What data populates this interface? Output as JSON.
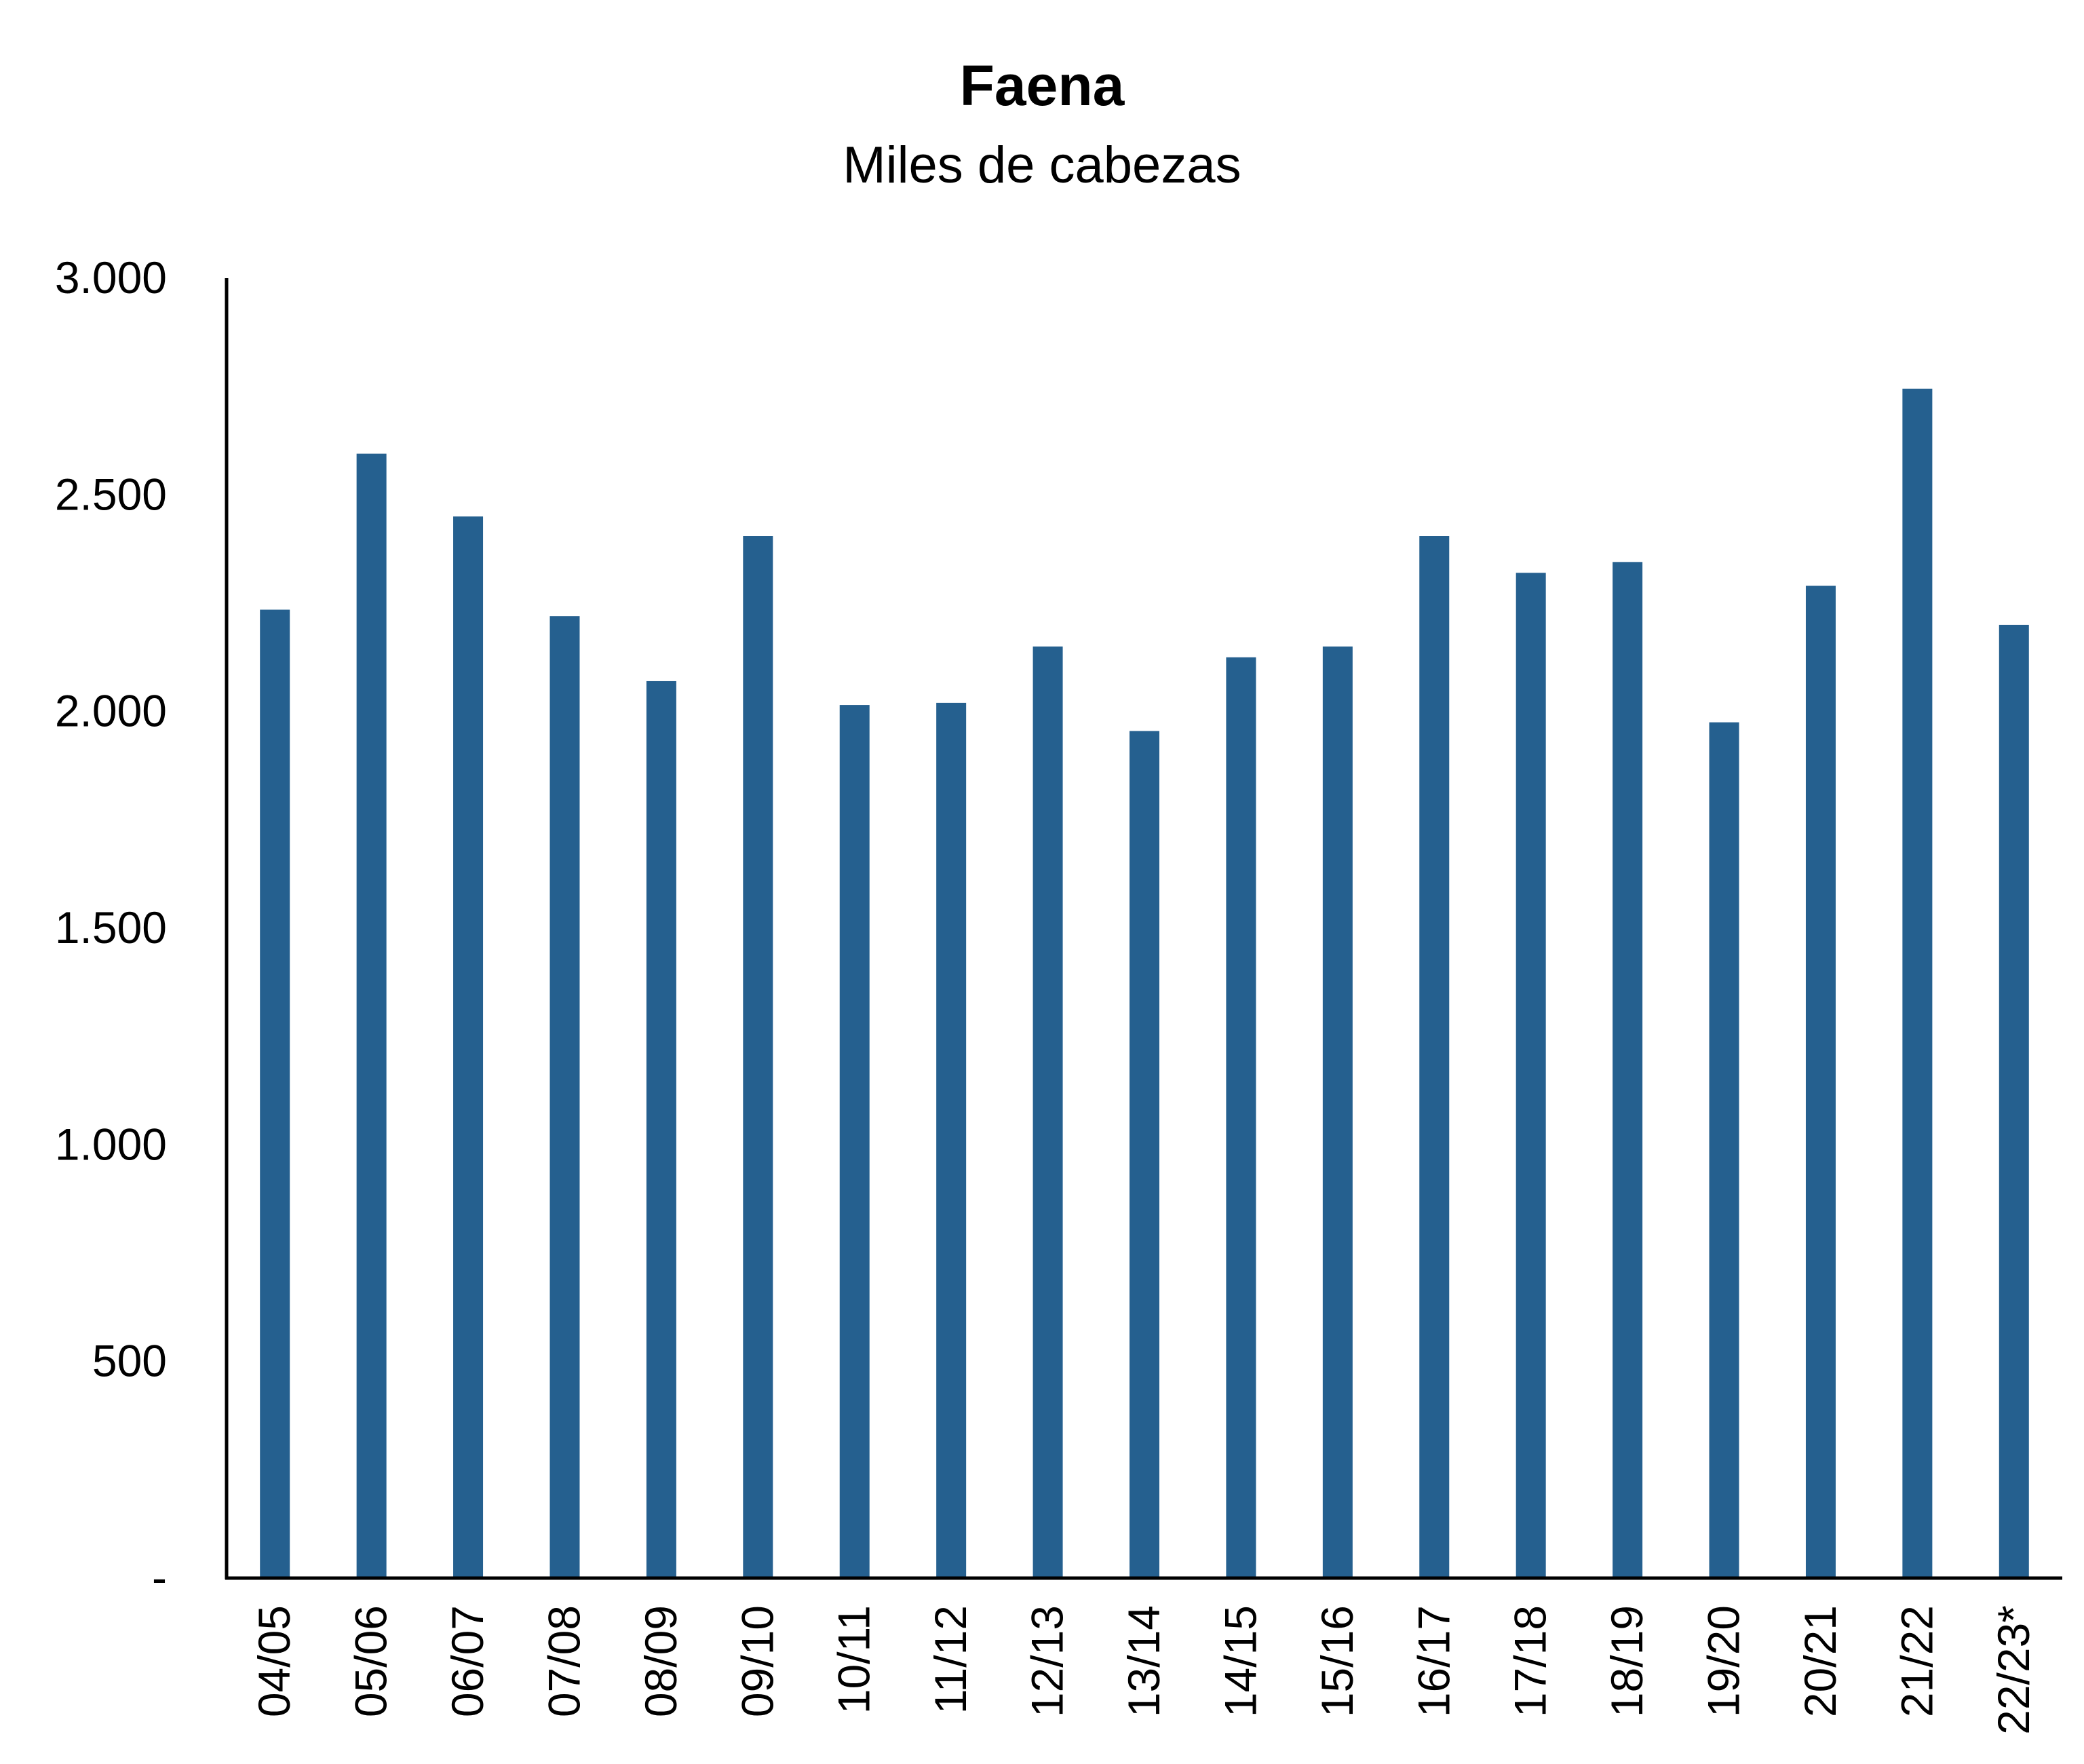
{
  "chart_data": {
    "type": "bar",
    "title": "Faena",
    "subtitle": "Miles de cabezas",
    "categories": [
      "04/05",
      "05/06",
      "06/07",
      "07/08",
      "08/09",
      "09/10",
      "10/11",
      "11/12",
      "12/13",
      "13/14",
      "14/15",
      "15/16",
      "16/17",
      "17/18",
      "18/19",
      "19/20",
      "20/21",
      "21/22",
      "22/23*"
    ],
    "values": [
      2235,
      2595,
      2450,
      2220,
      2070,
      2405,
      2015,
      2020,
      2150,
      1955,
      2125,
      2150,
      2405,
      2320,
      2345,
      1975,
      2290,
      2745,
      2200
    ],
    "ylim": [
      0,
      3000
    ],
    "yticks": [
      0,
      500,
      1000,
      1500,
      2000,
      2500,
      3000
    ],
    "ytick_labels": [
      "-",
      "500",
      "1.000",
      "1.500",
      "2.000",
      "2.500",
      "3.000"
    ],
    "xlabel": "",
    "ylabel": "",
    "grid": false,
    "bar_color": "#25608F",
    "axis_color": "#000000"
  }
}
